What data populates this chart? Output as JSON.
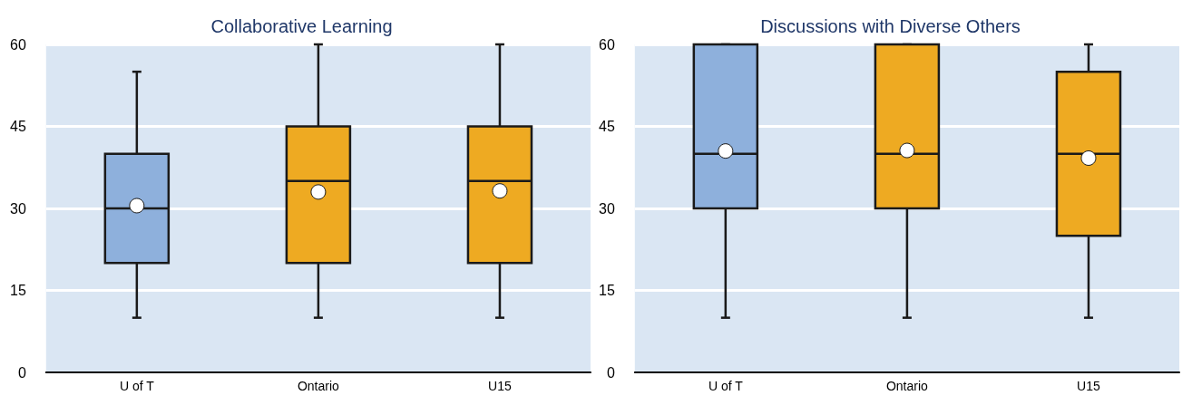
{
  "chart_data": [
    {
      "type": "box",
      "title": "Collaborative Learning",
      "categories": [
        "U of T",
        "Ontario",
        "U15"
      ],
      "colors": [
        "#8eb0dc",
        "#eeaa22",
        "#eeaa22"
      ],
      "ylim": [
        0,
        60
      ],
      "yticks": [
        0,
        15,
        30,
        45,
        60
      ],
      "grid": "y",
      "marker": "circle",
      "boxes": [
        {
          "low": 10,
          "q1": 20,
          "median": 30,
          "q3": 40,
          "high": 55,
          "mean": 30.5
        },
        {
          "low": 10,
          "q1": 20,
          "median": 35,
          "q3": 45,
          "high": 60,
          "mean": 33
        },
        {
          "low": 10,
          "q1": 20,
          "median": 35,
          "q3": 45,
          "high": 60,
          "mean": 33.2
        }
      ]
    },
    {
      "type": "box",
      "title": "Discussions with Diverse Others",
      "categories": [
        "U of T",
        "Ontario",
        "U15"
      ],
      "colors": [
        "#8eb0dc",
        "#eeaa22",
        "#eeaa22"
      ],
      "ylim": [
        0,
        60
      ],
      "yticks": [
        0,
        15,
        30,
        45,
        60
      ],
      "grid": "y",
      "marker": "circle",
      "boxes": [
        {
          "low": 10,
          "q1": 30,
          "median": 40,
          "q3": 60,
          "high": 60,
          "mean": 40.5
        },
        {
          "low": 10,
          "q1": 30,
          "median": 40,
          "q3": 60,
          "high": 60,
          "mean": 40.6
        },
        {
          "low": 10,
          "q1": 25,
          "median": 40,
          "q3": 55,
          "high": 60,
          "mean": 39.2
        }
      ]
    }
  ]
}
